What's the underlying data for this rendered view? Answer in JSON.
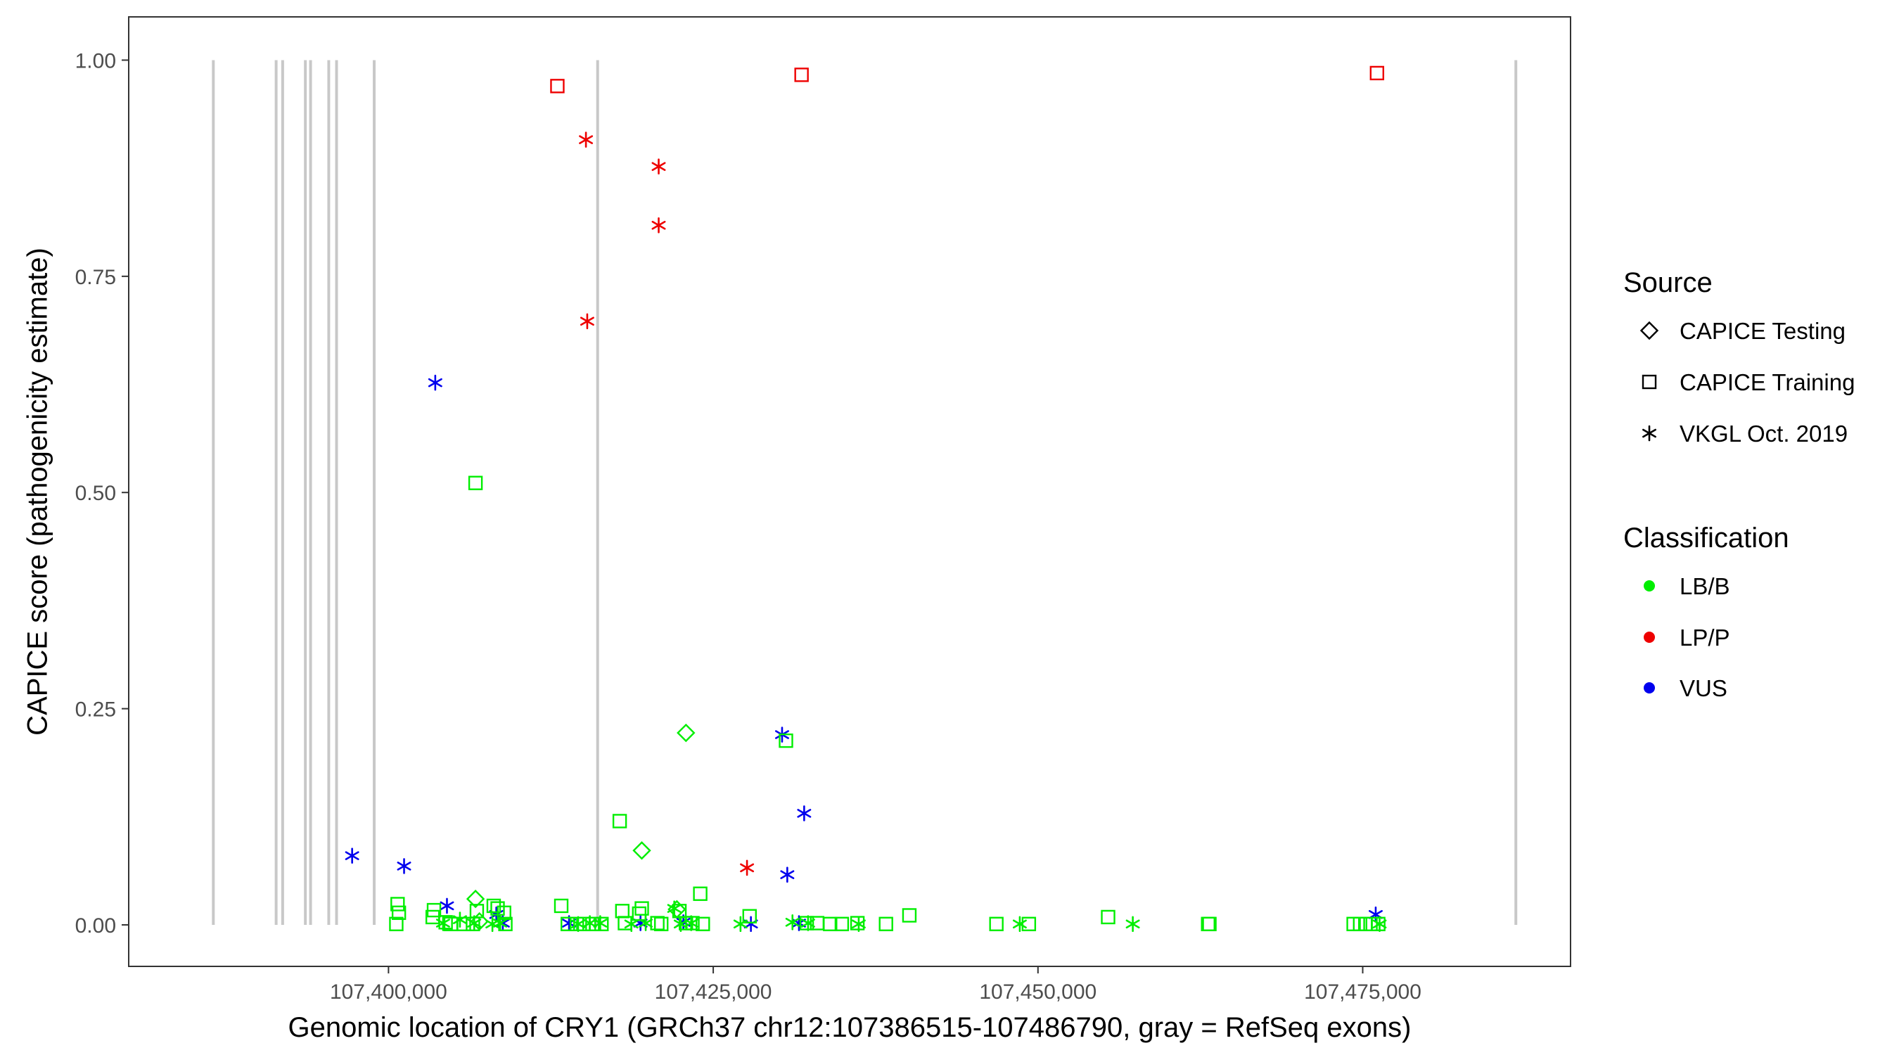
{
  "chart_data": {
    "type": "scatter",
    "xlabel": "Genomic location of CRY1 (GRCh37 chr12:107386515-107486790, gray = RefSeq exons)",
    "ylabel": "CAPICE score (pathogenicity estimate)",
    "xlim": [
      107380000,
      107491000
    ],
    "ylim": [
      -0.048,
      1.05
    ],
    "x_ticks": [
      107400000,
      107425000,
      107450000,
      107475000
    ],
    "x_tick_labels": [
      "107,400,000",
      "107,425,000",
      "107,450,000",
      "107,475,000"
    ],
    "y_ticks": [
      0,
      0.25,
      0.5,
      0.75,
      1.0
    ],
    "y_tick_labels": [
      "0.00",
      "0.25",
      "0.50",
      "0.75",
      "1.00"
    ],
    "grid": false,
    "legend_placement": "right",
    "exon_lines": [
      107386515,
      107391350,
      107391850,
      107393600,
      107394000,
      107395400,
      107396000,
      107398900,
      107416100,
      107486790
    ],
    "colors": {
      "LB/B": "#00ee00",
      "LP/P": "#ee0000",
      "VUS": "#0000ee",
      "exon": "#c8c8c8"
    },
    "legends": [
      {
        "title": "Source",
        "items": [
          {
            "label": "CAPICE Testing",
            "shape": "diamond"
          },
          {
            "label": "CAPICE Training",
            "shape": "square"
          },
          {
            "label": "VKGL Oct. 2019",
            "shape": "asterisk"
          }
        ]
      },
      {
        "title": "Classification",
        "items": [
          {
            "label": "LB/B",
            "color": "#00ee00"
          },
          {
            "label": "LP/P",
            "color": "#ee0000"
          },
          {
            "label": "VUS",
            "color": "#0000ee"
          }
        ]
      }
    ],
    "series": [
      {
        "source": "CAPICE Training",
        "classification": "LP/P",
        "x": [
          107413000,
          107431800,
          107476100
        ],
        "y": [
          0.97,
          0.983,
          0.985
        ]
      },
      {
        "source": "VKGL Oct. 2019",
        "classification": "LP/P",
        "x": [
          107415200,
          107420800,
          107420800,
          107415300,
          107427600
        ],
        "y": [
          0.908,
          0.877,
          0.809,
          0.698,
          0.066
        ]
      },
      {
        "source": "VKGL Oct. 2019",
        "classification": "VUS",
        "x": [
          107403600,
          107397200,
          107401200,
          107404500,
          107408300,
          107408800,
          107413900,
          107419400,
          107422700,
          107427900,
          107430300,
          107430700,
          107432000,
          107431600,
          107476000
        ],
        "y": [
          0.627,
          0.08,
          0.068,
          0.022,
          0.012,
          0.002,
          0.002,
          0.002,
          0.003,
          0.001,
          0.22,
          0.058,
          0.129,
          0.002,
          0.012
        ]
      },
      {
        "source": "CAPICE Training",
        "classification": "LB/B",
        "x": [
          107406700,
          107400700,
          107400800,
          107400600,
          107403500,
          107403400,
          107404400,
          107404800,
          107405800,
          107406500,
          107406800,
          107408100,
          107408400,
          107408900,
          107409000,
          107413300,
          107413800,
          107414500,
          107415000,
          107415700,
          107416400,
          107417800,
          107418000,
          107418200,
          107419500,
          107419300,
          107420700,
          107421000,
          107422400,
          107422900,
          107423400,
          107424000,
          107424200,
          107427800,
          107430600,
          107432200,
          107433000,
          107434000,
          107434900,
          107436100,
          107438300,
          107440100,
          107446800,
          107449300,
          107455400,
          107463100,
          107463200,
          107474300,
          107474800,
          107475200,
          107475600,
          107476200
        ],
        "y": [
          0.511,
          0.024,
          0.014,
          0.001,
          0.017,
          0.009,
          0.003,
          0.001,
          0.001,
          0.001,
          0.016,
          0.022,
          0.019,
          0.014,
          0.001,
          0.022,
          0.001,
          0.001,
          0.001,
          0.001,
          0.001,
          0.12,
          0.016,
          0.002,
          0.019,
          0.013,
          0.002,
          0.001,
          0.016,
          0.002,
          0.002,
          0.036,
          0.001,
          0.01,
          0.213,
          0.002,
          0.002,
          0.001,
          0.001,
          0.002,
          0.001,
          0.011,
          0.001,
          0.001,
          0.009,
          0.001,
          0.001,
          0.001,
          0.001,
          0.001,
          0.001,
          0.001
        ]
      },
      {
        "source": "CAPICE Testing",
        "classification": "LB/B",
        "x": [
          107406700,
          107422900,
          107419500,
          107407000,
          107422200
        ],
        "y": [
          0.03,
          0.222,
          0.086,
          0.004,
          0.018
        ]
      },
      {
        "source": "VKGL Oct. 2019",
        "classification": "LB/B",
        "x": [
          107404200,
          107405500,
          107406600,
          107408000,
          107408600,
          107414600,
          107415500,
          107416300,
          107418700,
          107419800,
          107422000,
          107422500,
          107423300,
          107427100,
          107431100,
          107432300,
          107436200,
          107448600,
          107457300,
          107476300
        ],
        "y": [
          0.002,
          0.006,
          0.002,
          0.001,
          0.002,
          0.001,
          0.002,
          0.002,
          0.001,
          0.002,
          0.019,
          0.001,
          0.002,
          0.001,
          0.003,
          0.002,
          0.001,
          0.001,
          0.001,
          0.001
        ]
      }
    ]
  }
}
